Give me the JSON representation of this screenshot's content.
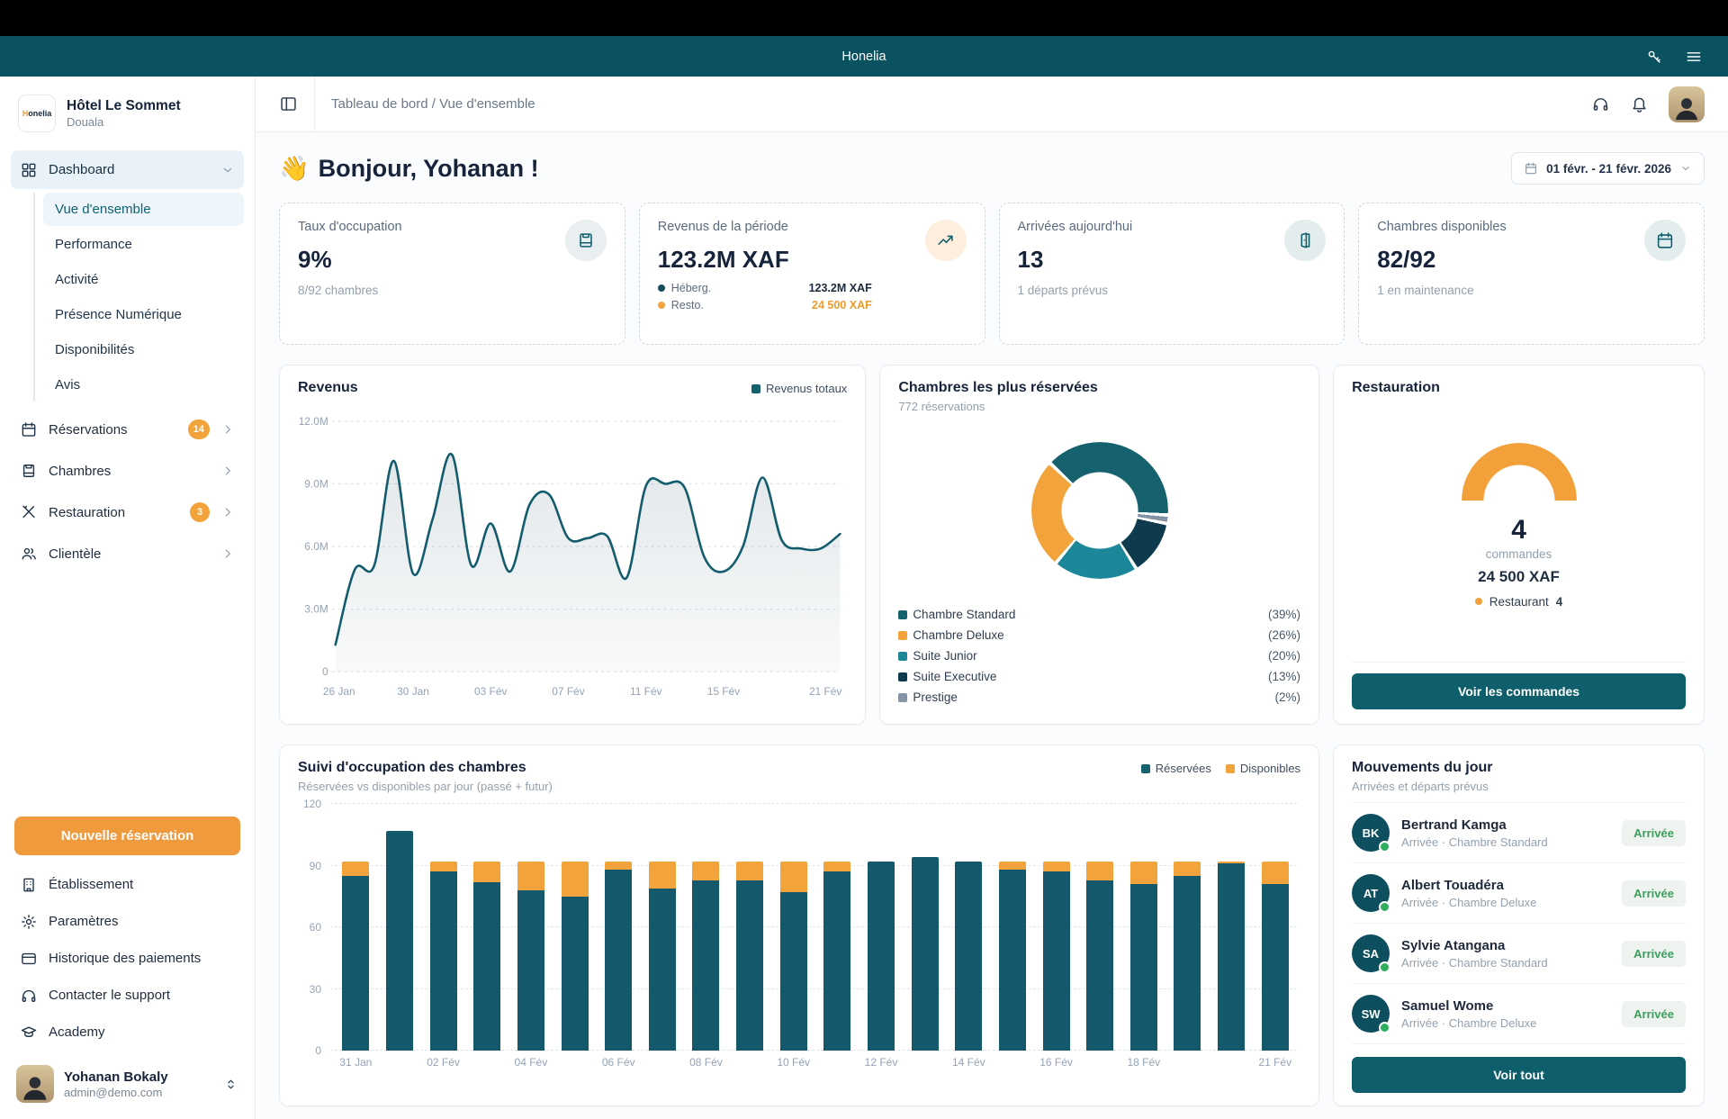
{
  "topbar": {
    "app_name": "Honelia"
  },
  "sidebar": {
    "hotel": {
      "logo_text": "Honelia",
      "name": "Hôtel Le Sommet",
      "city": "Douala"
    },
    "dashboard": {
      "label": "Dashboard",
      "items": [
        "Vue d'ensemble",
        "Performance",
        "Activité",
        "Présence Numérique",
        "Disponibilités",
        "Avis"
      ],
      "active_item": "Vue d'ensemble"
    },
    "sections": [
      {
        "label": "Réservations",
        "icon": "calendar",
        "badge": "14"
      },
      {
        "label": "Chambres",
        "icon": "bed",
        "badge": ""
      },
      {
        "label": "Restauration",
        "icon": "utensils",
        "badge": "3"
      },
      {
        "label": "Clientèle",
        "icon": "users",
        "badge": ""
      }
    ],
    "new_reservation_label": "Nouvelle réservation",
    "footer_items": [
      {
        "label": "Établissement",
        "icon": "building"
      },
      {
        "label": "Paramètres",
        "icon": "gear"
      },
      {
        "label": "Historique des paiements",
        "icon": "card"
      },
      {
        "label": "Contacter le support",
        "icon": "headphones"
      },
      {
        "label": "Academy",
        "icon": "cap"
      }
    ],
    "profile": {
      "name": "Yohanan Bokaly",
      "email": "admin@demo.com"
    }
  },
  "header": {
    "breadcrumb": "Tableau de bord / Vue d'ensemble"
  },
  "content": {
    "greeting_emoji": "👋",
    "greeting": "Bonjour, Yohanan !",
    "date_range": "01 févr. - 21 févr. 2026",
    "kpis": [
      {
        "title": "Taux d'occupation",
        "value": "9%",
        "subtitle": "8/92 chambres",
        "icon": "bed",
        "icon_bg": "#e9eef1",
        "icon_color": "#0f5e6b"
      },
      {
        "title": "Revenus de la période",
        "value": "123.2M XAF",
        "icon": "trend",
        "icon_bg": "#fdeede",
        "icon_color": "#0f5e6b",
        "breakdown": [
          {
            "label": "Héberg.",
            "value": "123.2M XAF",
            "dot": "#134e5f",
            "value_color": "#1e293b"
          },
          {
            "label": "Resto.",
            "value": "24 500 XAF",
            "dot": "#f2a33c",
            "value_color": "#ef9b28"
          }
        ]
      },
      {
        "title": "Arrivées aujourd'hui",
        "value": "13",
        "subtitle": "1 départs prévus",
        "icon": "door",
        "icon_bg": "#e3edee",
        "icon_color": "#0f5e6b"
      },
      {
        "title": "Chambres disponibles",
        "value": "82/92",
        "subtitle": "1 en maintenance",
        "icon": "calendar",
        "icon_bg": "#e3edee",
        "icon_color": "#0f5e6b"
      }
    ]
  },
  "chart_data": [
    {
      "id": "revenus",
      "type": "area",
      "title": "Revenus",
      "legend": [
        {
          "label": "Revenus totaux",
          "color": "#15616d"
        }
      ],
      "x": [
        "26 Jan",
        "27 Jan",
        "28 Jan",
        "29 Jan",
        "30 Jan",
        "31 Jan",
        "01 Fév",
        "02 Fév",
        "03 Fév",
        "04 Fév",
        "05 Fév",
        "06 Fév",
        "07 Fév",
        "08 Fév",
        "09 Fév",
        "10 Fév",
        "11 Fév",
        "12 Fév",
        "13 Fév",
        "14 Fév",
        "15 Fév",
        "16 Fév",
        "17 Fév",
        "18 Fév",
        "19 Fév",
        "20 Fév",
        "21 Fév"
      ],
      "series": [
        {
          "name": "Revenus totaux",
          "values_millions": [
            1.3,
            4.9,
            5.1,
            10.1,
            4.7,
            7.3,
            10.4,
            5.1,
            7.1,
            4.8,
            8.0,
            8.5,
            6.4,
            6.4,
            6.5,
            4.5,
            8.9,
            9.0,
            8.8,
            5.5,
            4.8,
            6.0,
            9.3,
            6.3,
            5.9,
            5.9,
            6.6
          ]
        }
      ],
      "ylim": [
        0,
        12
      ],
      "y_ticks": [
        {
          "v": 0,
          "label": "0"
        },
        {
          "v": 3,
          "label": "3.0M"
        },
        {
          "v": 6,
          "label": "6.0M"
        },
        {
          "v": 9,
          "label": "9.0M"
        },
        {
          "v": 12,
          "label": "12.0M"
        }
      ],
      "x_tick_indices": [
        0,
        4,
        8,
        12,
        16,
        20,
        26
      ],
      "line_color": "#135c6d",
      "grid": "horizontal-dashed",
      "legend_position": "top-right"
    },
    {
      "id": "rooms",
      "type": "pie",
      "title": "Chambres les plus réservées",
      "subtitle": "772 réservations",
      "segments": [
        {
          "label": "Chambre Standard",
          "pct": 39,
          "pct_label": "(39%)",
          "color": "#15616d"
        },
        {
          "label": "Chambre Deluxe",
          "pct": 26,
          "pct_label": "(26%)",
          "color": "#f2a33c"
        },
        {
          "label": "Suite Junior",
          "pct": 20,
          "pct_label": "(20%)",
          "color": "#1b8798"
        },
        {
          "label": "Suite Executive",
          "pct": 13,
          "pct_label": "(13%)",
          "color": "#0d3b4d"
        },
        {
          "label": "Prestige",
          "pct": 2,
          "pct_label": "(2%)",
          "color": "#8494a4"
        }
      ],
      "draw_order": [
        "Chambre Standard",
        "Prestige",
        "Suite Executive",
        "Suite Junior",
        "Chambre Deluxe"
      ],
      "start_angle_deg": -45,
      "legend_position": "bottom"
    },
    {
      "id": "restauration",
      "type": "gauge",
      "title": "Restauration",
      "value": "4",
      "value_label": "commandes",
      "amount": "24 500 XAF",
      "color": "#f2a13a",
      "legend": [
        {
          "label": "Restaurant",
          "value": "4",
          "color": "#f2a13a"
        }
      ],
      "button_label": "Voir les commandes"
    },
    {
      "id": "occupation",
      "type": "bar",
      "stacked": true,
      "title": "Suivi d'occupation des chambres",
      "subtitle": "Réservées vs disponibles par jour (passé + futur)",
      "legend": [
        {
          "label": "Réservées",
          "color": "#15616d"
        },
        {
          "label": "Disponibles",
          "color": "#f2a33c"
        }
      ],
      "categories": [
        "31 Jan",
        "01 Fév",
        "02 Fév",
        "03 Fév",
        "04 Fév",
        "05 Fév",
        "06 Fév",
        "07 Fév",
        "08 Fév",
        "09 Fév",
        "10 Fév",
        "11 Fév",
        "12 Fév",
        "13 Fév",
        "14 Fév",
        "15 Fév",
        "16 Fév",
        "17 Fév",
        "18 Fév",
        "19 Fév",
        "20 Fév",
        "21 Fév"
      ],
      "series": [
        {
          "name": "Réservées",
          "color": "#14586b",
          "values": [
            85,
            107,
            87,
            82,
            78,
            75,
            88,
            79,
            83,
            83,
            77,
            87,
            92,
            94,
            92,
            88,
            87,
            83,
            81,
            85,
            91,
            81
          ]
        },
        {
          "name": "Disponibles",
          "color": "#f2a33c",
          "values": [
            7,
            0,
            5,
            10,
            14,
            17,
            4,
            13,
            9,
            9,
            15,
            5,
            0,
            0,
            0,
            4,
            5,
            9,
            11,
            7,
            1,
            11
          ]
        }
      ],
      "ylim": [
        0,
        120
      ],
      "y_ticks": [
        0,
        30,
        60,
        90,
        120
      ],
      "x_tick_indices": [
        0,
        2,
        4,
        6,
        8,
        10,
        12,
        14,
        16,
        18,
        21
      ],
      "grid": "horizontal-dashed",
      "legend_position": "top-right"
    }
  ],
  "movements": {
    "title": "Mouvements du jour",
    "subtitle": "Arrivées et départs prévus",
    "guests": [
      {
        "initials": "BK",
        "name": "Bertrand Kamga",
        "detail": "Arrivée · Chambre Standard",
        "badge": "Arrivée"
      },
      {
        "initials": "AT",
        "name": "Albert Touadéra",
        "detail": "Arrivée · Chambre Deluxe",
        "badge": "Arrivée"
      },
      {
        "initials": "SA",
        "name": "Sylvie Atangana",
        "detail": "Arrivée · Chambre Standard",
        "badge": "Arrivée"
      },
      {
        "initials": "SW",
        "name": "Samuel Wome",
        "detail": "Arrivée · Chambre Deluxe",
        "badge": "Arrivée"
      }
    ],
    "view_all_label": "Voir tout",
    "status_color": "#3f9e5f"
  }
}
